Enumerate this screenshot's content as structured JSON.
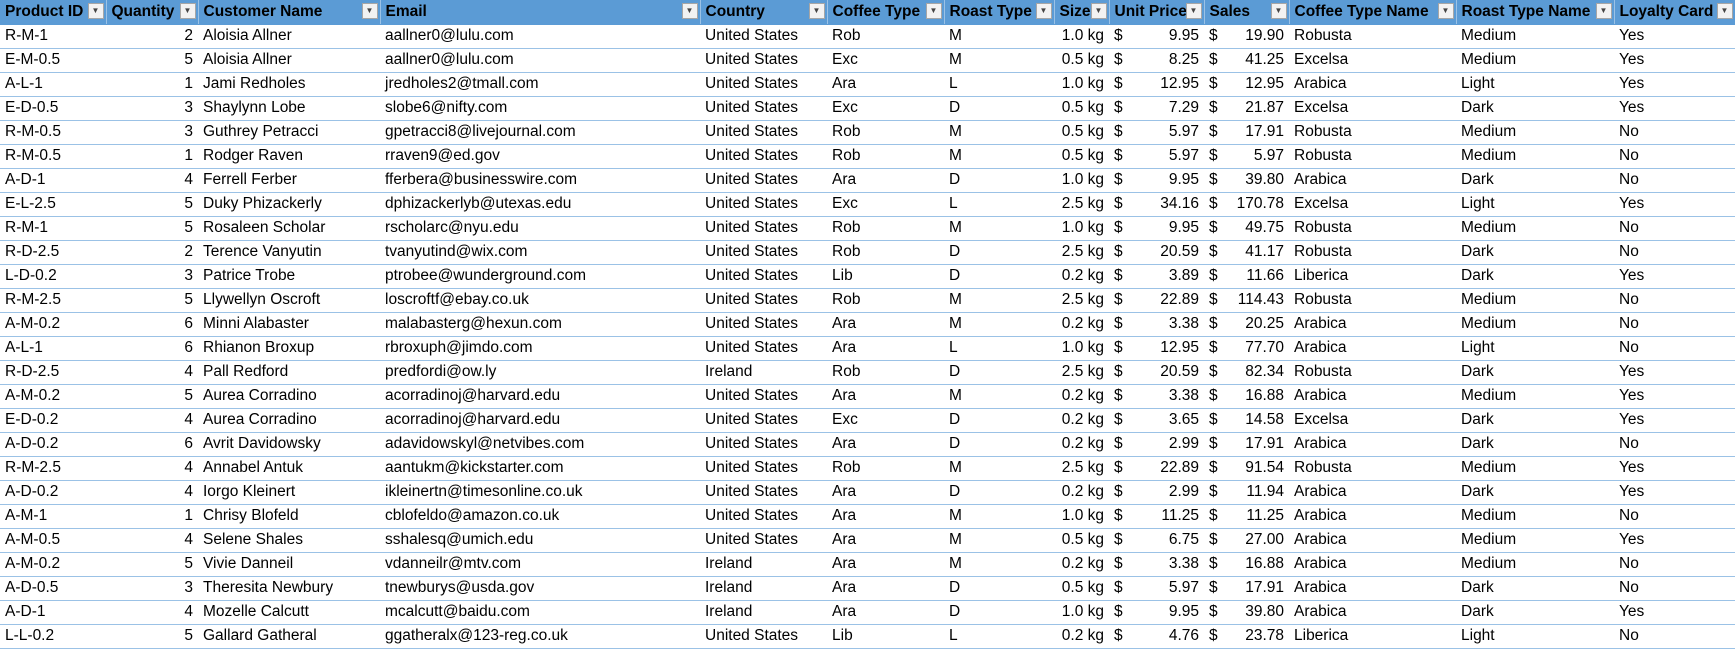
{
  "columns": [
    {
      "label": "Product ID",
      "key": "pid",
      "align": "left"
    },
    {
      "label": "Quantity",
      "key": "qty",
      "align": "right"
    },
    {
      "label": "Customer Name",
      "key": "name",
      "align": "left"
    },
    {
      "label": "Email",
      "key": "email",
      "align": "left"
    },
    {
      "label": "Country",
      "key": "country",
      "align": "left"
    },
    {
      "label": "Coffee Type",
      "key": "ctype",
      "align": "left"
    },
    {
      "label": "Roast Type",
      "key": "rtype",
      "align": "left"
    },
    {
      "label": "Size",
      "key": "size",
      "align": "right"
    },
    {
      "label": "Unit Price",
      "key": "price",
      "align": "money"
    },
    {
      "label": "Sales",
      "key": "sales",
      "align": "money"
    },
    {
      "label": "Coffee Type Name",
      "key": "ctname",
      "align": "left"
    },
    {
      "label": "Roast Type Name",
      "key": "rtname",
      "align": "left"
    },
    {
      "label": "Loyalty Card",
      "key": "loyal",
      "align": "left"
    }
  ],
  "currency_symbol": "$",
  "colors": {
    "header_bg": "#5b9bd5",
    "row_border": "#9bc2e6"
  },
  "rows": [
    [
      "R-M-1",
      "2",
      "Aloisia Allner",
      "aallner0@lulu.com",
      "United States",
      "Rob",
      "M",
      "1.0 kg",
      "9.95",
      "19.90",
      "Robusta",
      "Medium",
      "Yes"
    ],
    [
      "E-M-0.5",
      "5",
      "Aloisia Allner",
      "aallner0@lulu.com",
      "United States",
      "Exc",
      "M",
      "0.5 kg",
      "8.25",
      "41.25",
      "Excelsa",
      "Medium",
      "Yes"
    ],
    [
      "A-L-1",
      "1",
      "Jami Redholes",
      "jredholes2@tmall.com",
      "United States",
      "Ara",
      "L",
      "1.0 kg",
      "12.95",
      "12.95",
      "Arabica",
      "Light",
      "Yes"
    ],
    [
      "E-D-0.5",
      "3",
      "Shaylynn Lobe",
      "slobe6@nifty.com",
      "United States",
      "Exc",
      "D",
      "0.5 kg",
      "7.29",
      "21.87",
      "Excelsa",
      "Dark",
      "Yes"
    ],
    [
      "R-M-0.5",
      "3",
      "Guthrey Petracci",
      "gpetracci8@livejournal.com",
      "United States",
      "Rob",
      "M",
      "0.5 kg",
      "5.97",
      "17.91",
      "Robusta",
      "Medium",
      "No"
    ],
    [
      "R-M-0.5",
      "1",
      "Rodger Raven",
      "rraven9@ed.gov",
      "United States",
      "Rob",
      "M",
      "0.5 kg",
      "5.97",
      "5.97",
      "Robusta",
      "Medium",
      "No"
    ],
    [
      "A-D-1",
      "4",
      "Ferrell Ferber",
      "fferbera@businesswire.com",
      "United States",
      "Ara",
      "D",
      "1.0 kg",
      "9.95",
      "39.80",
      "Arabica",
      "Dark",
      "No"
    ],
    [
      "E-L-2.5",
      "5",
      "Duky Phizackerly",
      "dphizackerlyb@utexas.edu",
      "United States",
      "Exc",
      "L",
      "2.5 kg",
      "34.16",
      "170.78",
      "Excelsa",
      "Light",
      "Yes"
    ],
    [
      "R-M-1",
      "5",
      "Rosaleen Scholar",
      "rscholarc@nyu.edu",
      "United States",
      "Rob",
      "M",
      "1.0 kg",
      "9.95",
      "49.75",
      "Robusta",
      "Medium",
      "No"
    ],
    [
      "R-D-2.5",
      "2",
      "Terence Vanyutin",
      "tvanyutind@wix.com",
      "United States",
      "Rob",
      "D",
      "2.5 kg",
      "20.59",
      "41.17",
      "Robusta",
      "Dark",
      "No"
    ],
    [
      "L-D-0.2",
      "3",
      "Patrice Trobe",
      "ptrobee@wunderground.com",
      "United States",
      "Lib",
      "D",
      "0.2 kg",
      "3.89",
      "11.66",
      "Liberica",
      "Dark",
      "Yes"
    ],
    [
      "R-M-2.5",
      "5",
      "Llywellyn Oscroft",
      "loscroftf@ebay.co.uk",
      "United States",
      "Rob",
      "M",
      "2.5 kg",
      "22.89",
      "114.43",
      "Robusta",
      "Medium",
      "No"
    ],
    [
      "A-M-0.2",
      "6",
      "Minni Alabaster",
      "malabasterg@hexun.com",
      "United States",
      "Ara",
      "M",
      "0.2 kg",
      "3.38",
      "20.25",
      "Arabica",
      "Medium",
      "No"
    ],
    [
      "A-L-1",
      "6",
      "Rhianon Broxup",
      "rbroxuph@jimdo.com",
      "United States",
      "Ara",
      "L",
      "1.0 kg",
      "12.95",
      "77.70",
      "Arabica",
      "Light",
      "No"
    ],
    [
      "R-D-2.5",
      "4",
      "Pall Redford",
      "predfordi@ow.ly",
      "Ireland",
      "Rob",
      "D",
      "2.5 kg",
      "20.59",
      "82.34",
      "Robusta",
      "Dark",
      "Yes"
    ],
    [
      "A-M-0.2",
      "5",
      "Aurea Corradino",
      "acorradinoj@harvard.edu",
      "United States",
      "Ara",
      "M",
      "0.2 kg",
      "3.38",
      "16.88",
      "Arabica",
      "Medium",
      "Yes"
    ],
    [
      "E-D-0.2",
      "4",
      "Aurea Corradino",
      "acorradinoj@harvard.edu",
      "United States",
      "Exc",
      "D",
      "0.2 kg",
      "3.65",
      "14.58",
      "Excelsa",
      "Dark",
      "Yes"
    ],
    [
      "A-D-0.2",
      "6",
      "Avrit Davidowsky",
      "adavidowskyl@netvibes.com",
      "United States",
      "Ara",
      "D",
      "0.2 kg",
      "2.99",
      "17.91",
      "Arabica",
      "Dark",
      "No"
    ],
    [
      "R-M-2.5",
      "4",
      "Annabel Antuk",
      "aantukm@kickstarter.com",
      "United States",
      "Rob",
      "M",
      "2.5 kg",
      "22.89",
      "91.54",
      "Robusta",
      "Medium",
      "Yes"
    ],
    [
      "A-D-0.2",
      "4",
      "Iorgo Kleinert",
      "ikleinertn@timesonline.co.uk",
      "United States",
      "Ara",
      "D",
      "0.2 kg",
      "2.99",
      "11.94",
      "Arabica",
      "Dark",
      "Yes"
    ],
    [
      "A-M-1",
      "1",
      "Chrisy Blofeld",
      "cblofeldo@amazon.co.uk",
      "United States",
      "Ara",
      "M",
      "1.0 kg",
      "11.25",
      "11.25",
      "Arabica",
      "Medium",
      "No"
    ],
    [
      "A-M-0.5",
      "4",
      "Selene Shales",
      "sshalesq@umich.edu",
      "United States",
      "Ara",
      "M",
      "0.5 kg",
      "6.75",
      "27.00",
      "Arabica",
      "Medium",
      "Yes"
    ],
    [
      "A-M-0.2",
      "5",
      "Vivie Danneil",
      "vdanneilr@mtv.com",
      "Ireland",
      "Ara",
      "M",
      "0.2 kg",
      "3.38",
      "16.88",
      "Arabica",
      "Medium",
      "No"
    ],
    [
      "A-D-0.5",
      "3",
      "Theresita Newbury",
      "tnewburys@usda.gov",
      "Ireland",
      "Ara",
      "D",
      "0.5 kg",
      "5.97",
      "17.91",
      "Arabica",
      "Dark",
      "No"
    ],
    [
      "A-D-1",
      "4",
      "Mozelle Calcutt",
      "mcalcutt@baidu.com",
      "Ireland",
      "Ara",
      "D",
      "1.0 kg",
      "9.95",
      "39.80",
      "Arabica",
      "Dark",
      "Yes"
    ],
    [
      "L-L-0.2",
      "5",
      "Gallard Gatheral",
      "ggatheralx@123-reg.co.uk",
      "United States",
      "Lib",
      "L",
      "0.2 kg",
      "4.76",
      "23.78",
      "Liberica",
      "Light",
      "No"
    ]
  ]
}
